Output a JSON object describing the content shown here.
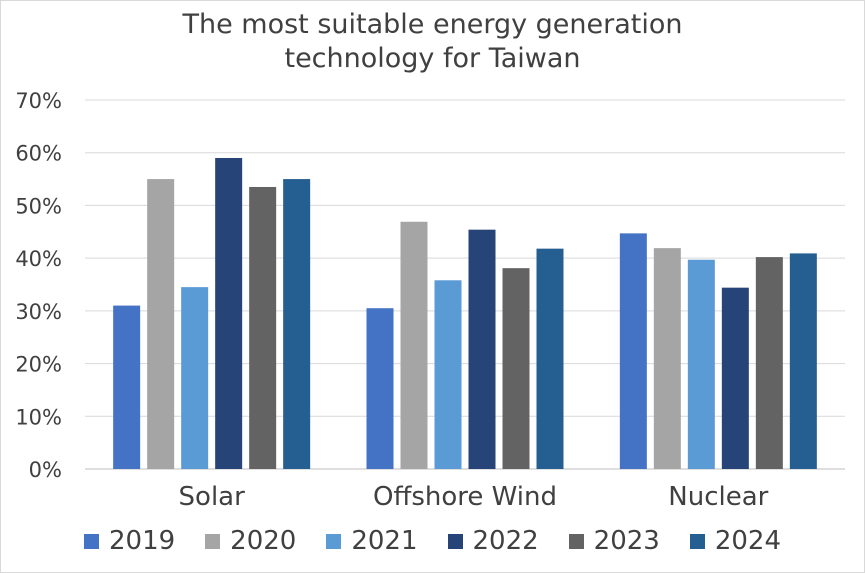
{
  "chart_data": {
    "type": "bar",
    "title_lines": [
      "The most suitable energy generation",
      "technology for Taiwan"
    ],
    "categories": [
      "Solar",
      "Offshore Wind",
      "Nuclear"
    ],
    "series": [
      {
        "name": "2019",
        "color": "#4472c4",
        "values": [
          31,
          30.5,
          44.7
        ]
      },
      {
        "name": "2020",
        "color": "#a5a5a5",
        "values": [
          55,
          46.9,
          41.9
        ]
      },
      {
        "name": "2021",
        "color": "#5b9bd5",
        "values": [
          34.5,
          35.8,
          39.7
        ]
      },
      {
        "name": "2022",
        "color": "#264478",
        "values": [
          59,
          45.4,
          34.4
        ]
      },
      {
        "name": "2023",
        "color": "#636363",
        "values": [
          53.5,
          38.1,
          40.2
        ]
      },
      {
        "name": "2024",
        "color": "#255e91",
        "values": [
          55,
          41.8,
          40.9
        ]
      }
    ],
    "ylim": [
      0,
      70
    ],
    "yticks": [
      "0%",
      "10%",
      "20%",
      "30%",
      "40%",
      "50%",
      "60%",
      "70%"
    ],
    "grid": true,
    "legend_position": "bottom"
  }
}
